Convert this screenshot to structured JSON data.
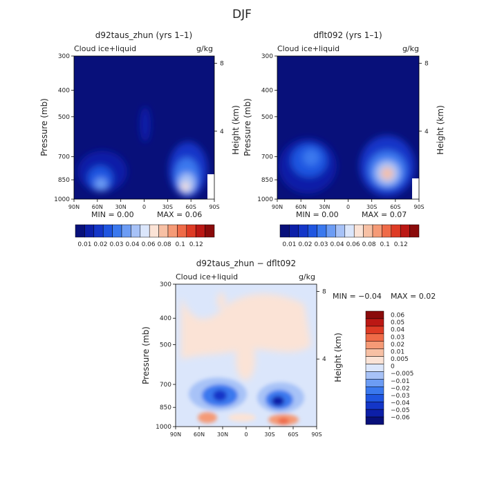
{
  "page": {
    "title": "DJF"
  },
  "colors": {
    "positive_scale": [
      "#08107a",
      "#0c1fa8",
      "#1436c8",
      "#1f55e0",
      "#3a78ee",
      "#6c9cf4",
      "#a7c2f7",
      "#dbe6fb",
      "#fbe3d6",
      "#f7c0a4",
      "#f59a76",
      "#ef6b48",
      "#de3b25",
      "#bb1814",
      "#8a0b0b"
    ],
    "diff_scale": [
      "#08107a",
      "#0c1fa8",
      "#1436c8",
      "#1f55e0",
      "#3a78ee",
      "#6c9cf4",
      "#a7c2f7",
      "#dbe6fb",
      "#fbe3d6",
      "#f7c0a4",
      "#f59a76",
      "#ef6b48",
      "#de3b25",
      "#bb1814",
      "#8a0b0b"
    ],
    "frame": "#000000"
  },
  "chart_data": [
    {
      "type": "heatmap",
      "title": "d92taus_zhun (yrs 1–1)",
      "variable_label": "Cloud ice+liquid",
      "units_label": "g/kg",
      "xlabel": "",
      "ylabel": "Pressure (mb)",
      "y2label": "Height (km)",
      "x_ticks": [
        "90N",
        "60N",
        "30N",
        "0",
        "30S",
        "60S",
        "90S"
      ],
      "y_ticks": [
        "300",
        "400",
        "500",
        "700",
        "850",
        "1000"
      ],
      "y2_ticks": [
        "8",
        "4"
      ],
      "min_text": "MIN =    0.00",
      "max_text": "MAX =    0.06",
      "min": 0.0,
      "max": 0.06,
      "colorbar_labels": [
        "0.01",
        "0.02",
        "0.03",
        "0.04",
        "0.06",
        "0.08",
        "0.1",
        "0.12"
      ],
      "features": [
        {
          "lat": -45,
          "p": 900,
          "value": 0.06,
          "note": "SH low-level maximum"
        },
        {
          "lat": 55,
          "p": 880,
          "value": 0.03,
          "note": "NH low-level maximum"
        },
        {
          "lat": 0,
          "p": 570,
          "value": 0.005,
          "note": "tropical upper plume"
        }
      ]
    },
    {
      "type": "heatmap",
      "title": "dflt092 (yrs 1–1)",
      "variable_label": "Cloud ice+liquid",
      "units_label": "g/kg",
      "xlabel": "",
      "ylabel": "Pressure (mb)",
      "y2label": "Height (km)",
      "x_ticks": [
        "90N",
        "60N",
        "30N",
        "0",
        "30S",
        "60S",
        "90S"
      ],
      "y_ticks": [
        "300",
        "400",
        "500",
        "700",
        "850",
        "1000"
      ],
      "y2_ticks": [
        "8",
        "4"
      ],
      "min_text": "MIN =    0.00",
      "max_text": "MAX =    0.07",
      "min": 0.0,
      "max": 0.07,
      "colorbar_labels": [
        "0.01",
        "0.02",
        "0.03",
        "0.04",
        "0.06",
        "0.08",
        "0.1",
        "0.12"
      ],
      "features": [
        {
          "lat": -45,
          "p": 850,
          "value": 0.07,
          "note": "SH low-level maximum"
        },
        {
          "lat": 50,
          "p": 820,
          "value": 0.04,
          "note": "NH low-level maximum"
        }
      ]
    },
    {
      "type": "heatmap",
      "title": "d92taus_zhun − dflt092",
      "variable_label": "Cloud ice+liquid",
      "units_label": "g/kg",
      "xlabel": "",
      "ylabel": "Pressure (mb)",
      "y2label": "Height (km)",
      "x_ticks": [
        "90N",
        "60N",
        "30N",
        "0",
        "30S",
        "60S",
        "90S"
      ],
      "y_ticks": [
        "300",
        "400",
        "500",
        "700",
        "850",
        "1000"
      ],
      "y2_ticks": [
        "8",
        "4"
      ],
      "min_text": "MIN =   −0.04",
      "max_text": "MAX =   0.02",
      "min": -0.04,
      "max": 0.02,
      "colorbar_labels": [
        "0.06",
        "0.05",
        "0.04",
        "0.03",
        "0.02",
        "0.01",
        "0.005",
        "0",
        "−0.005",
        "−0.01",
        "−0.02",
        "−0.03",
        "−0.04",
        "−0.05",
        "−0.06"
      ],
      "features": [
        {
          "lat": 45,
          "p": 850,
          "value": -0.03,
          "note": "NH negative core"
        },
        {
          "lat": -40,
          "p": 860,
          "value": -0.04,
          "note": "SH negative core"
        },
        {
          "lat": -45,
          "p": 960,
          "value": 0.02,
          "note": "SH near-surface positive"
        },
        {
          "lat": 55,
          "p": 960,
          "value": 0.01,
          "note": "NH near-surface positive"
        }
      ]
    }
  ]
}
